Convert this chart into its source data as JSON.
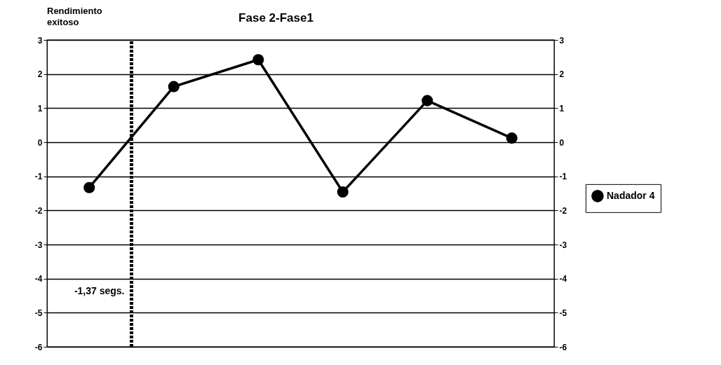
{
  "chart_data": {
    "type": "line",
    "title": "Fase 2-Fase1",
    "categories": [
      null,
      null,
      null,
      null,
      null,
      null
    ],
    "series": [
      {
        "name": "Nadador 4",
        "color": "#000000",
        "values": [
          -1.33,
          1.63,
          2.42,
          -1.46,
          1.22,
          0.12
        ]
      }
    ],
    "ylim": [
      -6,
      3
    ],
    "yticks": [
      -6,
      -5,
      -4,
      -3,
      -2,
      -1,
      0,
      1,
      2,
      3
    ],
    "y2lim": [
      -6,
      3
    ],
    "y2ticks": [
      -6,
      -5,
      -4,
      -3,
      -2,
      -1,
      0,
      1,
      2,
      3
    ],
    "grid": "y",
    "legend": "right",
    "marker": "circle",
    "line_style": "solid",
    "annotations": [
      "Rendimiento\nexitoso",
      "-1,37 segs."
    ]
  }
}
